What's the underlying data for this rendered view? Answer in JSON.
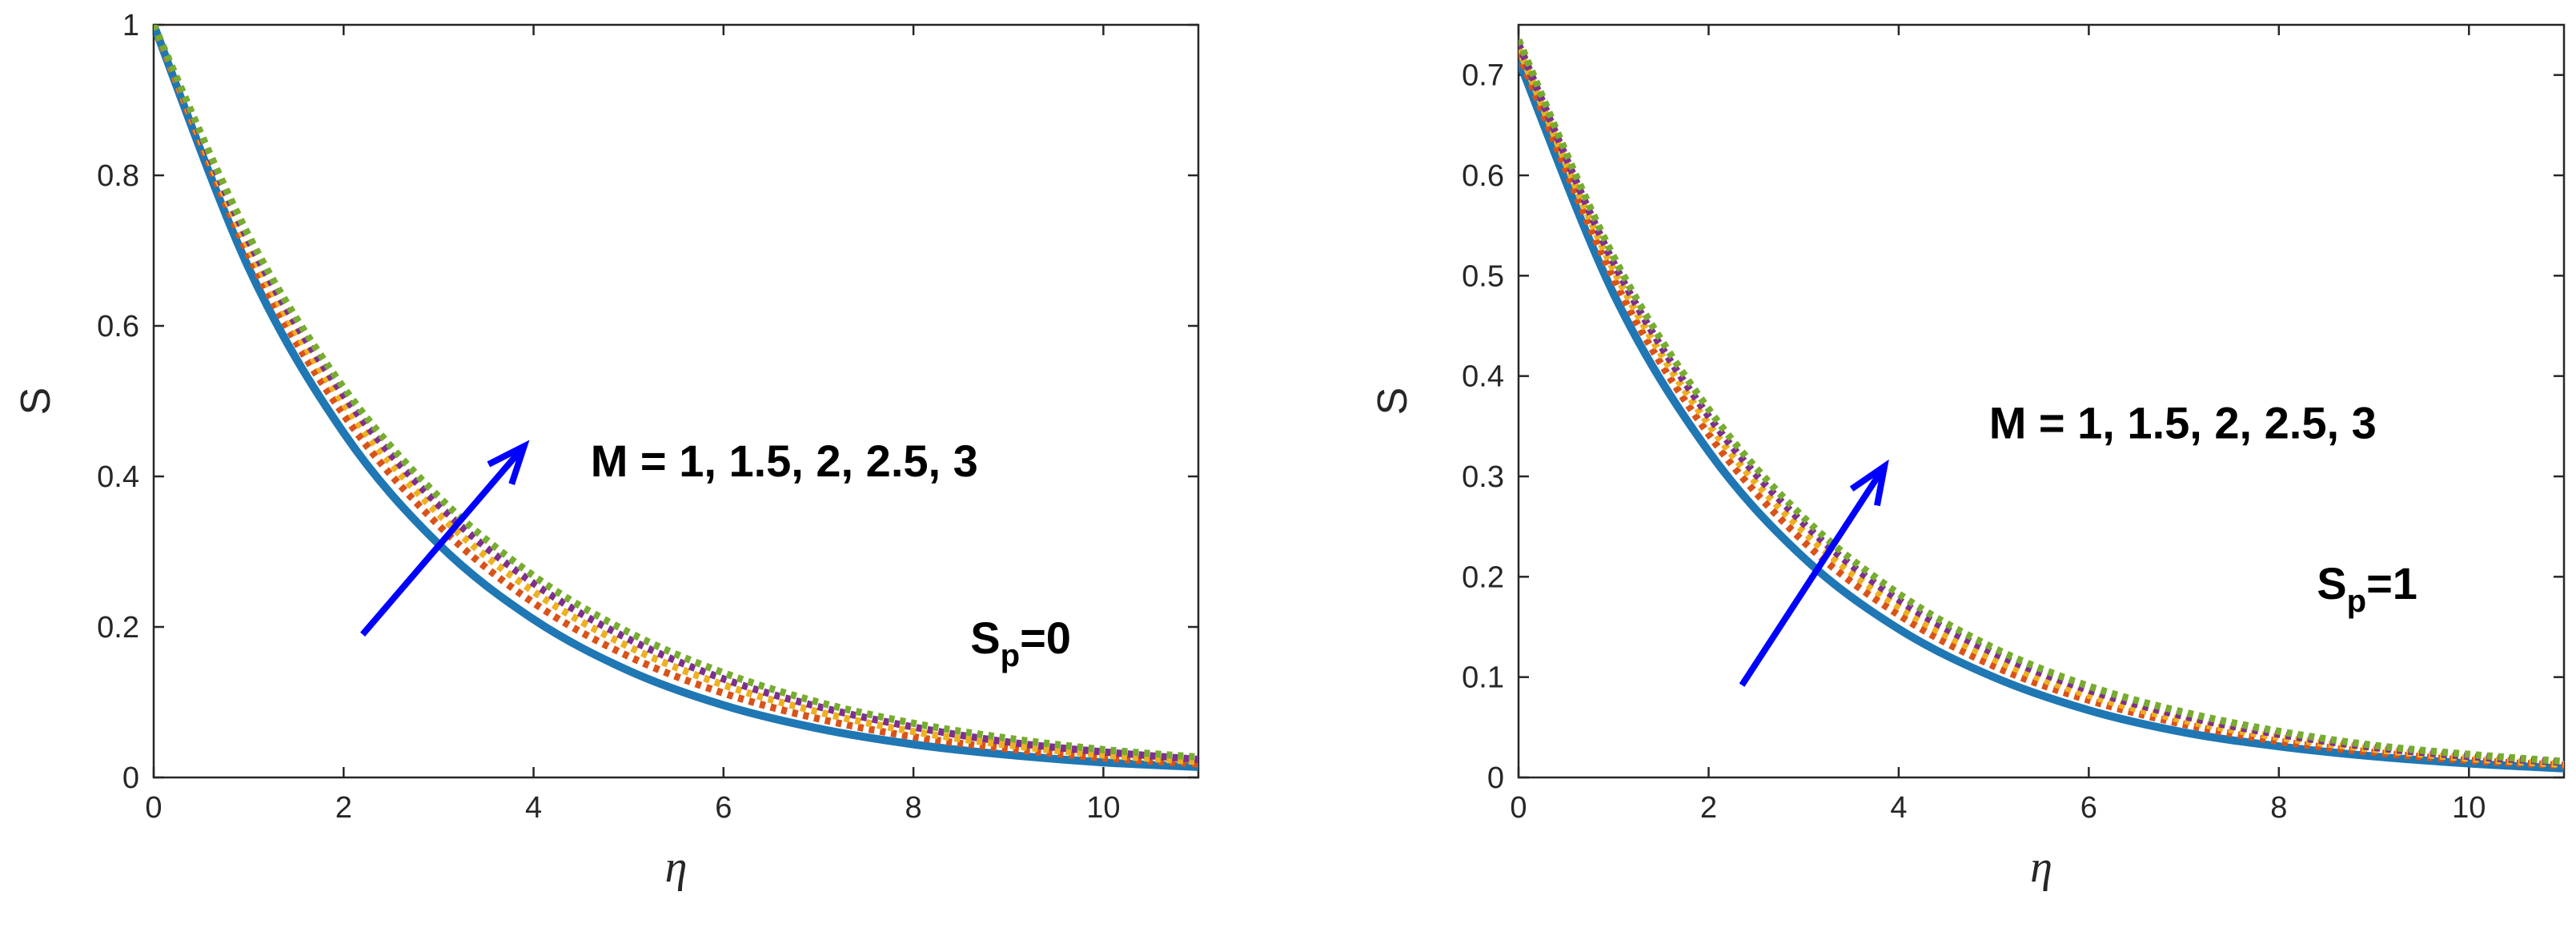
{
  "colors": {
    "series": [
      "#1f77b4",
      "#d95319",
      "#edb120",
      "#7e2f8e",
      "#77ac30"
    ],
    "arrow": "#0000ff",
    "axes": "#262626"
  },
  "chart_data": [
    {
      "type": "line",
      "xlabel": "η",
      "ylabel": "S",
      "xlim": [
        0,
        11
      ],
      "ylim": [
        0,
        1
      ],
      "xticks": [
        0,
        2,
        4,
        6,
        8,
        10
      ],
      "yticks": [
        0,
        0.2,
        0.4,
        0.6,
        0.8,
        1
      ],
      "ytick_labels": [
        "0",
        "0.2",
        "0.4",
        "0.6",
        "0.8",
        "1"
      ],
      "grid": false,
      "annotation": {
        "label": "M = 1, 1.5, 2, 2.5, 3",
        "x": 4.6,
        "y": 0.4
      },
      "param_label": {
        "base": "S",
        "sub": "p",
        "rest": "=0",
        "x": 8.6,
        "y": 0.165
      },
      "arrow": {
        "from": [
          2.2,
          0.19
        ],
        "to": [
          3.9,
          0.44
        ]
      },
      "series": [
        {
          "style": "solid",
          "values": {
            "x": [
              0,
              1,
              2,
              3,
              4,
              5,
              6,
              7,
              8,
              9,
              10,
              11
            ],
            "y": [
              1.0,
              0.677,
              0.458,
              0.31,
              0.21,
              0.142,
              0.096,
              0.065,
              0.044,
              0.03,
              0.02,
              0.014
            ]
          }
        },
        {
          "style": "dotted",
          "values": {
            "x": [
              0,
              1,
              2,
              3,
              4,
              5,
              6,
              7,
              8,
              9,
              10,
              11
            ],
            "y": [
              1.0,
              0.694,
              0.482,
              0.335,
              0.232,
              0.161,
              0.112,
              0.078,
              0.054,
              0.038,
              0.026,
              0.018
            ]
          }
        },
        {
          "style": "dotted",
          "values": {
            "x": [
              0,
              1,
              2,
              3,
              4,
              5,
              6,
              7,
              8,
              9,
              10,
              11
            ],
            "y": [
              1.0,
              0.705,
              0.497,
              0.35,
              0.247,
              0.174,
              0.123,
              0.087,
              0.061,
              0.043,
              0.03,
              0.021
            ]
          }
        },
        {
          "style": "dotted",
          "values": {
            "x": [
              0,
              1,
              2,
              3,
              4,
              5,
              6,
              7,
              8,
              9,
              10,
              11
            ],
            "y": [
              1.0,
              0.713,
              0.508,
              0.362,
              0.258,
              0.184,
              0.131,
              0.094,
              0.067,
              0.047,
              0.034,
              0.024
            ]
          }
        },
        {
          "style": "dotted",
          "values": {
            "x": [
              0,
              1,
              2,
              3,
              4,
              5,
              6,
              7,
              8,
              9,
              10,
              11
            ],
            "y": [
              1.0,
              0.72,
              0.518,
              0.373,
              0.268,
              0.193,
              0.139,
              0.1,
              0.072,
              0.052,
              0.037,
              0.027
            ]
          }
        }
      ]
    },
    {
      "type": "line",
      "xlabel": "η",
      "ylabel": "S",
      "xlim": [
        0,
        11
      ],
      "ylim": [
        0,
        0.75
      ],
      "xticks": [
        0,
        2,
        4,
        6,
        8,
        10
      ],
      "yticks": [
        0,
        0.1,
        0.2,
        0.3,
        0.4,
        0.5,
        0.6,
        0.7
      ],
      "ytick_labels": [
        "0",
        "0.1",
        "0.2",
        "0.3",
        "0.4",
        "0.5",
        "0.6",
        "0.7"
      ],
      "grid": false,
      "annotation": {
        "label": "M = 1, 1.5, 2, 2.5, 3",
        "x": 4.95,
        "y": 0.338
      },
      "param_label": {
        "base": "S",
        "sub": "p",
        "rest": "=1",
        "x": 8.4,
        "y": 0.178
      },
      "arrow": {
        "from": [
          2.35,
          0.092
        ],
        "to": [
          3.85,
          0.31
        ]
      },
      "series": [
        {
          "style": "solid",
          "values": {
            "x": [
              0,
              1,
              2,
              3,
              4,
              5,
              6,
              7,
              8,
              9,
              10,
              11
            ],
            "y": [
              0.715,
              0.482,
              0.325,
              0.219,
              0.148,
              0.1,
              0.067,
              0.045,
              0.031,
              0.021,
              0.014,
              0.009
            ]
          }
        },
        {
          "style": "dotted",
          "values": {
            "x": [
              0,
              1,
              2,
              3,
              4,
              5,
              6,
              7,
              8,
              9,
              10,
              11
            ],
            "y": [
              0.722,
              0.497,
              0.342,
              0.235,
              0.162,
              0.111,
              0.077,
              0.053,
              0.036,
              0.025,
              0.017,
              0.012
            ]
          }
        },
        {
          "style": "dotted",
          "values": {
            "x": [
              0,
              1,
              2,
              3,
              4,
              5,
              6,
              7,
              8,
              9,
              10,
              11
            ],
            "y": [
              0.727,
              0.506,
              0.352,
              0.245,
              0.17,
              0.118,
              0.082,
              0.057,
              0.04,
              0.028,
              0.019,
              0.013
            ]
          }
        },
        {
          "style": "dotted",
          "values": {
            "x": [
              0,
              1,
              2,
              3,
              4,
              5,
              6,
              7,
              8,
              9,
              10,
              11
            ],
            "y": [
              0.731,
              0.513,
              0.36,
              0.253,
              0.177,
              0.124,
              0.087,
              0.061,
              0.043,
              0.03,
              0.021,
              0.015
            ]
          }
        },
        {
          "style": "dotted",
          "values": {
            "x": [
              0,
              1,
              2,
              3,
              4,
              5,
              6,
              7,
              8,
              9,
              10,
              11
            ],
            "y": [
              0.735,
              0.519,
              0.367,
              0.259,
              0.183,
              0.129,
              0.091,
              0.065,
              0.046,
              0.032,
              0.023,
              0.016
            ]
          }
        }
      ]
    }
  ]
}
